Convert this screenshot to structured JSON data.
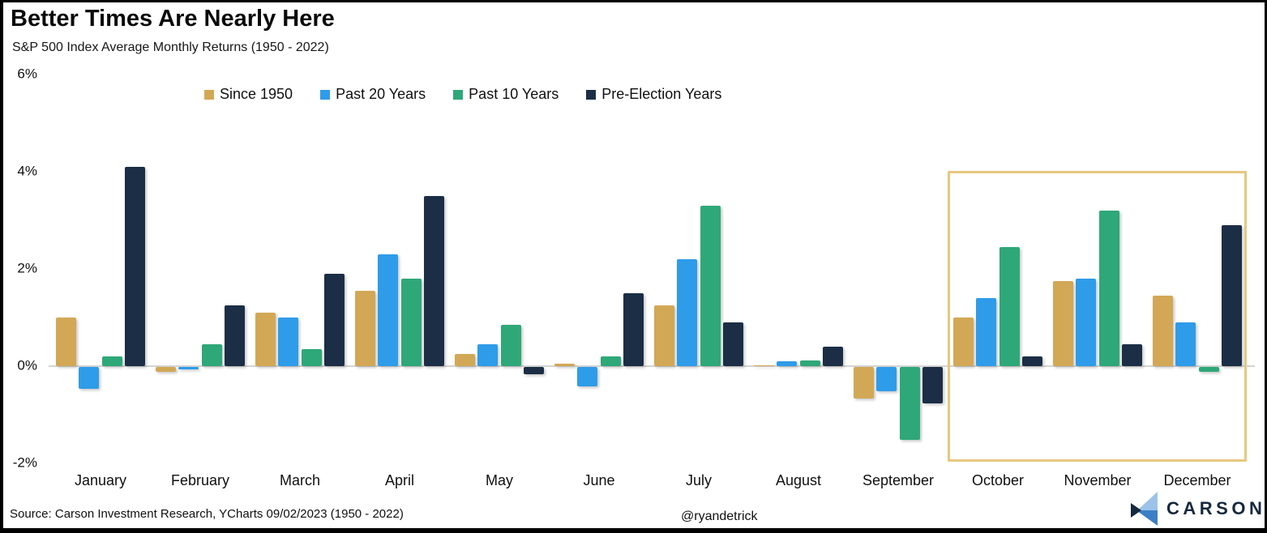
{
  "header": {
    "title": "Better Times Are Nearly Here",
    "subtitle": "S&P 500 Index Average Monthly Returns (1950 - 2022)"
  },
  "legend": {
    "items": [
      {
        "label": "Since 1950",
        "color": "#d2a856"
      },
      {
        "label": "Past 20 Years",
        "color": "#2e9ce9"
      },
      {
        "label": "Past 10 Years",
        "color": "#2ea878"
      },
      {
        "label": "Pre-Election Years",
        "color": "#1b2e45"
      }
    ]
  },
  "chart_data": {
    "type": "bar",
    "title": "Better Times Are Nearly Here",
    "subtitle": "S&P 500 Index Average Monthly Returns (1950 - 2022)",
    "categories": [
      "January",
      "February",
      "March",
      "April",
      "May",
      "June",
      "July",
      "August",
      "September",
      "October",
      "November",
      "December"
    ],
    "series": [
      {
        "name": "Since 1950",
        "color": "#d2a856",
        "values": [
          1.0,
          -0.1,
          1.1,
          1.55,
          0.25,
          0.05,
          1.25,
          0.02,
          -0.65,
          1.0,
          1.75,
          1.45
        ]
      },
      {
        "name": "Past 20 Years",
        "color": "#2e9ce9",
        "values": [
          -0.45,
          -0.05,
          1.0,
          2.3,
          0.45,
          -0.4,
          2.2,
          0.1,
          -0.5,
          1.4,
          1.8,
          0.9
        ]
      },
      {
        "name": "Past 10 Years",
        "color": "#2ea878",
        "values": [
          0.2,
          0.45,
          0.35,
          1.8,
          0.85,
          0.2,
          3.3,
          0.12,
          -1.5,
          2.45,
          3.2,
          -0.1
        ]
      },
      {
        "name": "Pre-Election Years",
        "color": "#1b2e45",
        "values": [
          4.1,
          1.25,
          1.9,
          3.5,
          -0.15,
          1.5,
          0.9,
          0.4,
          -0.75,
          0.2,
          0.45,
          2.9
        ]
      }
    ],
    "y_ticks": [
      {
        "label": "6%",
        "value": 6
      },
      {
        "label": "4%",
        "value": 4
      },
      {
        "label": "2%",
        "value": 2
      },
      {
        "label": "0%",
        "value": 0
      },
      {
        "label": "-2%",
        "value": -2
      }
    ],
    "ylim": [
      -2,
      6
    ],
    "grid": false,
    "legend_position": "top-center",
    "highlight": {
      "months": [
        "October",
        "November",
        "December"
      ],
      "border_color": "#e6c87f"
    }
  },
  "footer": {
    "source": "Source: Carson Investment Research, YCharts 09/02/2023 (1950 - 2022)",
    "handle": "@ryandetrick",
    "brand": "CARSON"
  },
  "colors": {
    "baseline": "#d4d4d2",
    "frame_border": "#000000",
    "brand_text": "#16293e",
    "logo_light_blue": "#9cc3e8",
    "logo_mid_blue": "#3d7fc4",
    "logo_dark_navy": "#16293e"
  }
}
